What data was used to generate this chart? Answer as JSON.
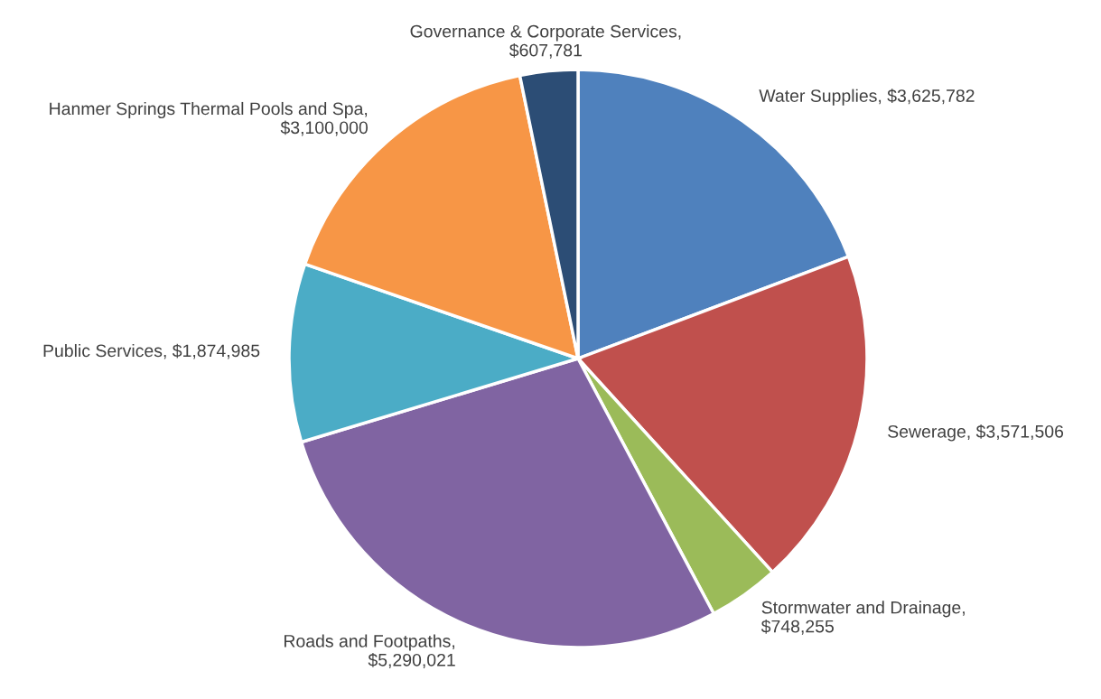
{
  "chart_data": {
    "type": "pie",
    "categories": [
      "Water Supplies, $3,625,782",
      "Sewerage, $3,571,506",
      "Stormwater and Drainage, $748,255",
      "Roads and Footpaths, $5,290,021",
      "Public Services, $1,874,985",
      "Hanmer Springs Thermal Pools and Spa, $3,100,000",
      "Governance & Corporate Services, $607,781"
    ],
    "values": [
      3625782,
      3571506,
      748255,
      5290021,
      1874985,
      3100000,
      607781
    ],
    "colors": [
      "#4f81bd",
      "#c0504d",
      "#9bbb59",
      "#8064a2",
      "#4bacc6",
      "#f79646",
      "#2c4d75"
    ],
    "legend": false
  }
}
